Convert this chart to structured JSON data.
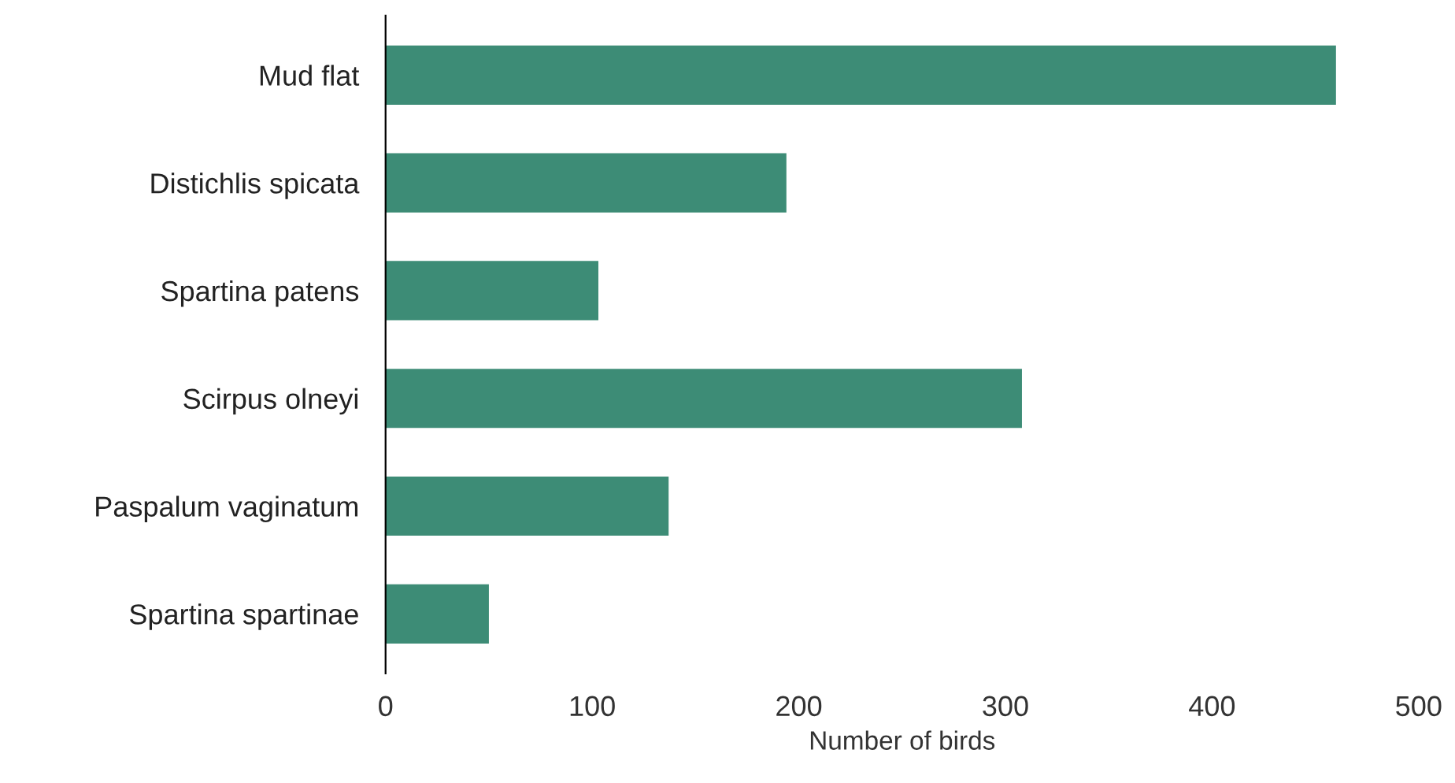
{
  "chart_data": {
    "type": "bar",
    "orientation": "horizontal",
    "xlabel": "Number of birds",
    "categories": [
      "Mud flat",
      "Distichlis spicata",
      "Spartina patens",
      "Scirpus olneyi",
      "Paspalum vaginatum",
      "Spartina spartinae"
    ],
    "values": [
      460,
      194,
      103,
      308,
      137,
      50
    ],
    "color": "#3d8c76",
    "xlim": [
      0,
      500
    ],
    "xticks": [
      0,
      100,
      200,
      300,
      400,
      500
    ],
    "grid": false,
    "legend": false
  }
}
